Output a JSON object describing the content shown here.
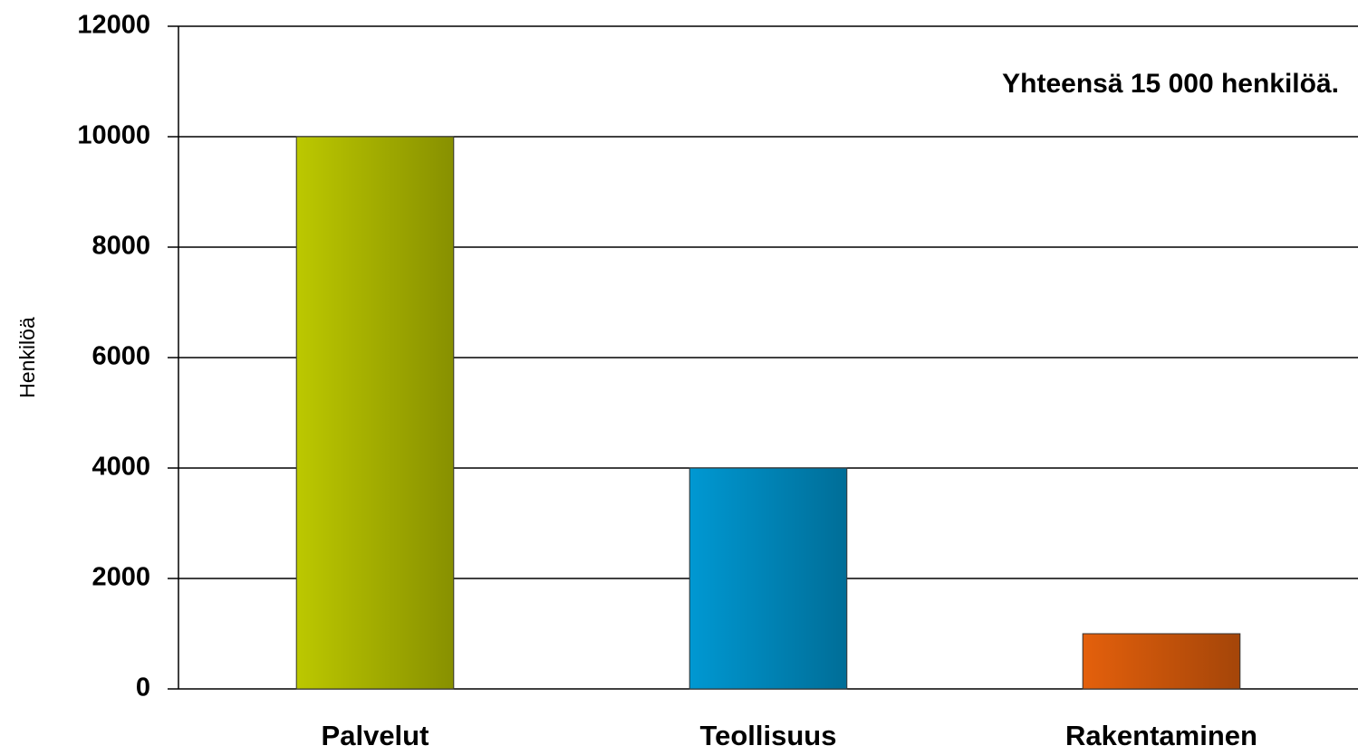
{
  "chart_data": {
    "type": "bar",
    "ylabel": "Henkilöä",
    "annotation": "Yhteensä 15 000 henkilöä.",
    "categories": [
      "Palvelut",
      "Teollisuus",
      "Rakentaminen"
    ],
    "values": [
      10000,
      4000,
      1000
    ],
    "colors": [
      "#bcc800",
      "#0098d2",
      "#e4600c"
    ],
    "ylim": [
      0,
      12000
    ],
    "yticks": [
      0,
      2000,
      4000,
      6000,
      8000,
      10000,
      12000
    ],
    "grid": true
  }
}
